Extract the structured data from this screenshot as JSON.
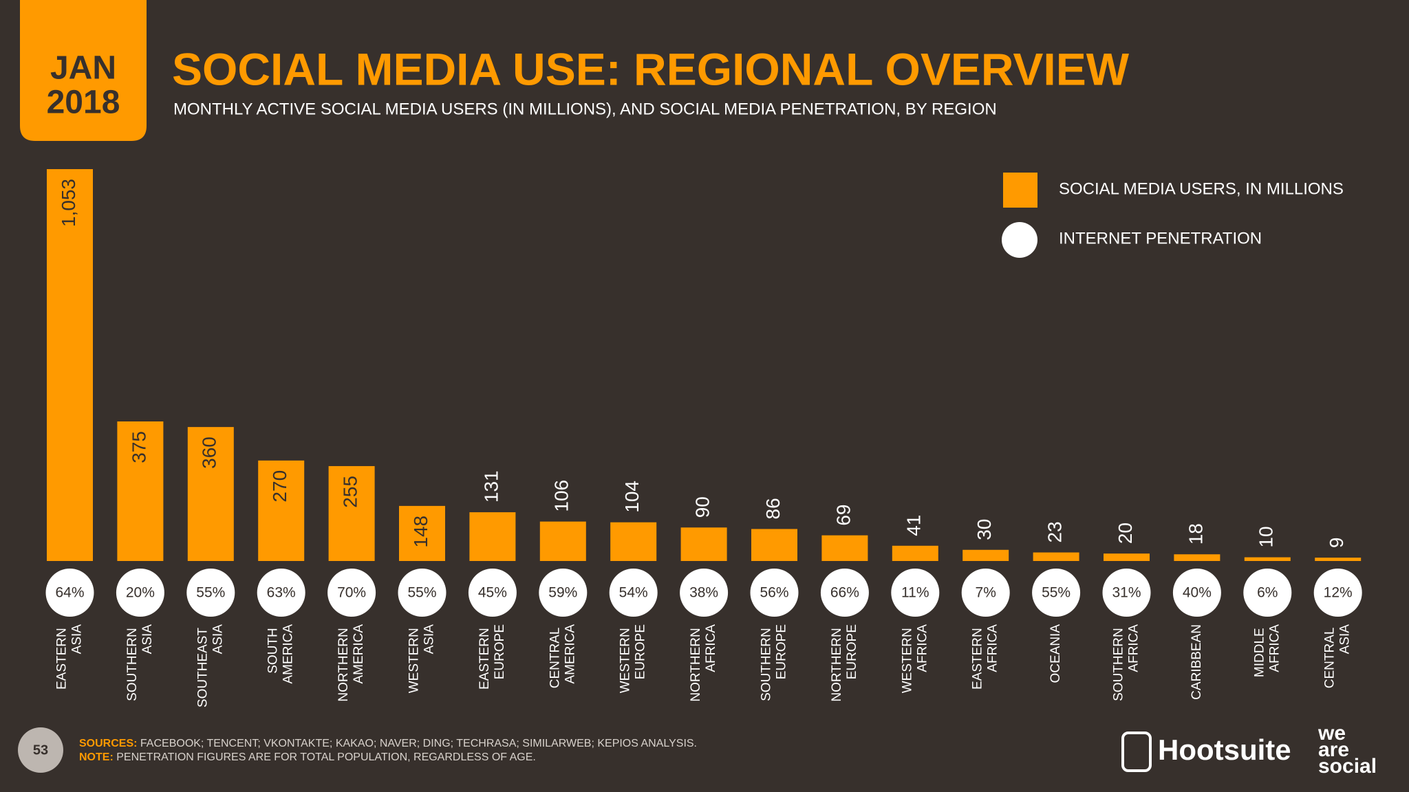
{
  "date_tab": [
    "JAN",
    "2018"
  ],
  "chart_data": {
    "type": "bar",
    "title": "SOCIAL MEDIA USE: REGIONAL OVERVIEW",
    "subtitle": "MONTHLY ACTIVE SOCIAL MEDIA USERS (IN MILLIONS), AND SOCIAL MEDIA PENETRATION, BY REGION",
    "categories": [
      "EASTERN ASIA",
      "SOUTHERN ASIA",
      "SOUTHEAST ASIA",
      "SOUTH AMERICA",
      "NORTHERN AMERICA",
      "WESTERN ASIA",
      "EASTERN EUROPE",
      "CENTRAL AMERICA",
      "WESTERN EUROPE",
      "NORTHERN AFRICA",
      "SOUTHERN EUROPE",
      "NORTHERN EUROPE",
      "WESTERN AFRICA",
      "EASTERN AFRICA",
      "OCEANIA",
      "SOUTHERN AFRICA",
      "CARIBBEAN",
      "MIDDLE AFRICA",
      "CENTRAL ASIA"
    ],
    "series": [
      {
        "name": "SOCIAL MEDIA USERS, IN MILLIONS",
        "color": "#ff9a00",
        "values": [
          1053,
          375,
          360,
          270,
          255,
          148,
          131,
          106,
          104,
          90,
          86,
          69,
          41,
          30,
          23,
          20,
          18,
          10,
          9
        ],
        "value_labels": [
          "1,053",
          "375",
          "360",
          "270",
          "255",
          "148",
          "131",
          "106",
          "104",
          "90",
          "86",
          "69",
          "41",
          "30",
          "23",
          "20",
          "18",
          "10",
          "9"
        ]
      },
      {
        "name": "INTERNET PENETRATION",
        "color": "#ffffff",
        "values": [
          64,
          20,
          55,
          63,
          70,
          55,
          45,
          59,
          54,
          38,
          56,
          66,
          11,
          7,
          55,
          31,
          40,
          6,
          12
        ],
        "value_labels": [
          "64%",
          "20%",
          "55%",
          "63%",
          "70%",
          "55%",
          "45%",
          "59%",
          "54%",
          "38%",
          "56%",
          "66%",
          "11%",
          "7%",
          "55%",
          "31%",
          "40%",
          "6%",
          "12%"
        ]
      }
    ]
  },
  "footer": {
    "page": "53",
    "sources_label": "SOURCES:",
    "sources": "FACEBOOK; TENCENT; VKONTAKTE; KAKAO; NAVER; DING; TECHRASA; SIMILARWEB; KEPIOS ANALYSIS.",
    "note_label": "NOTE:",
    "note": "PENETRATION FIGURES ARE FOR TOTAL POPULATION, REGARDLESS OF AGE.",
    "brand_1": "Hootsuite",
    "brand_2": [
      "we",
      "are",
      "social"
    ]
  }
}
